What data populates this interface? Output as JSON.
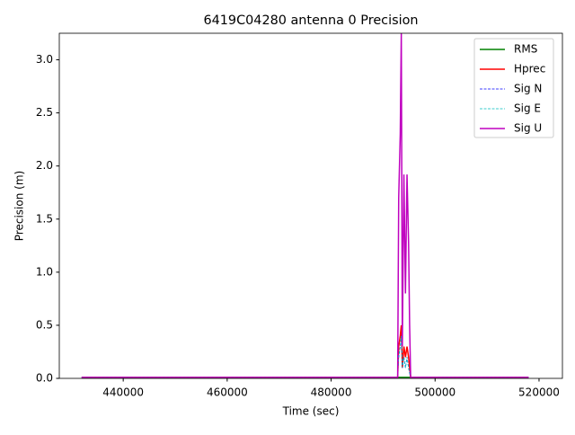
{
  "chart_data": {
    "type": "line",
    "title": "6419C04280 antenna 0 Precision",
    "x_label": "Time (sec)",
    "y_label": "Precision (m)",
    "x": [
      432000,
      436000,
      440000,
      445000,
      450000,
      460000,
      470000,
      480000,
      490000,
      492800,
      493000,
      493300,
      493500,
      493700,
      494000,
      494300,
      494600,
      494900,
      495100,
      495300,
      500000,
      510000,
      518000
    ],
    "series": [
      {
        "name": "RMS",
        "color": "#008000",
        "linestyle": "solid",
        "values": [
          0.005,
          0.005,
          0.005,
          0.005,
          0.005,
          0.005,
          0.005,
          0.005,
          0.005,
          0.005,
          0.01,
          0.01,
          0.01,
          0.01,
          0.01,
          0.01,
          0.01,
          0.01,
          0.01,
          0.005,
          0.005,
          0.005,
          0.005
        ]
      },
      {
        "name": "Hprec",
        "color": "#ff0000",
        "linestyle": "solid",
        "values": [
          0.01,
          0.01,
          0.01,
          0.01,
          0.01,
          0.01,
          0.01,
          0.01,
          0.01,
          0.01,
          0.3,
          0.4,
          0.5,
          0.1,
          0.3,
          0.2,
          0.3,
          0.2,
          0.1,
          0.01,
          0.01,
          0.01,
          0.01
        ]
      },
      {
        "name": "Sig N",
        "color": "#0000ff",
        "linestyle": "dashed",
        "values": [
          0.01,
          0.01,
          0.01,
          0.01,
          0.01,
          0.01,
          0.01,
          0.01,
          0.01,
          0.01,
          0.2,
          0.3,
          0.4,
          0.1,
          0.2,
          0.1,
          0.2,
          0.1,
          0.05,
          0.01,
          0.01,
          0.01,
          0.01
        ]
      },
      {
        "name": "Sig E",
        "color": "#00bfbf",
        "linestyle": "dashed",
        "values": [
          0.01,
          0.01,
          0.01,
          0.01,
          0.01,
          0.01,
          0.01,
          0.01,
          0.01,
          0.01,
          0.2,
          0.3,
          0.4,
          0.1,
          0.2,
          0.1,
          0.2,
          0.1,
          0.05,
          0.01,
          0.01,
          0.01,
          0.01
        ]
      },
      {
        "name": "Sig U",
        "color": "#bf00bf",
        "linestyle": "solid",
        "values": [
          0.01,
          0.01,
          0.01,
          0.01,
          0.01,
          0.01,
          0.01,
          0.01,
          0.01,
          0.01,
          1.7,
          2.3,
          3.25,
          0.3,
          1.92,
          0.8,
          1.92,
          1.28,
          0.5,
          0.01,
          0.01,
          0.01,
          0.01
        ]
      }
    ],
    "xlim": [
      427700,
      524500
    ],
    "xticks": [
      440000,
      460000,
      480000,
      500000,
      520000
    ],
    "ylim": [
      0,
      3.25
    ],
    "yticks": [
      {
        "value": 0,
        "label": "0.0"
      },
      0.5,
      {
        "value": 1,
        "label": "1.0"
      },
      1.5,
      {
        "value": 2,
        "label": "2.0"
      },
      2.5,
      {
        "value": 3,
        "label": "3.0"
      }
    ],
    "legend": "upper right",
    "grid": false
  }
}
